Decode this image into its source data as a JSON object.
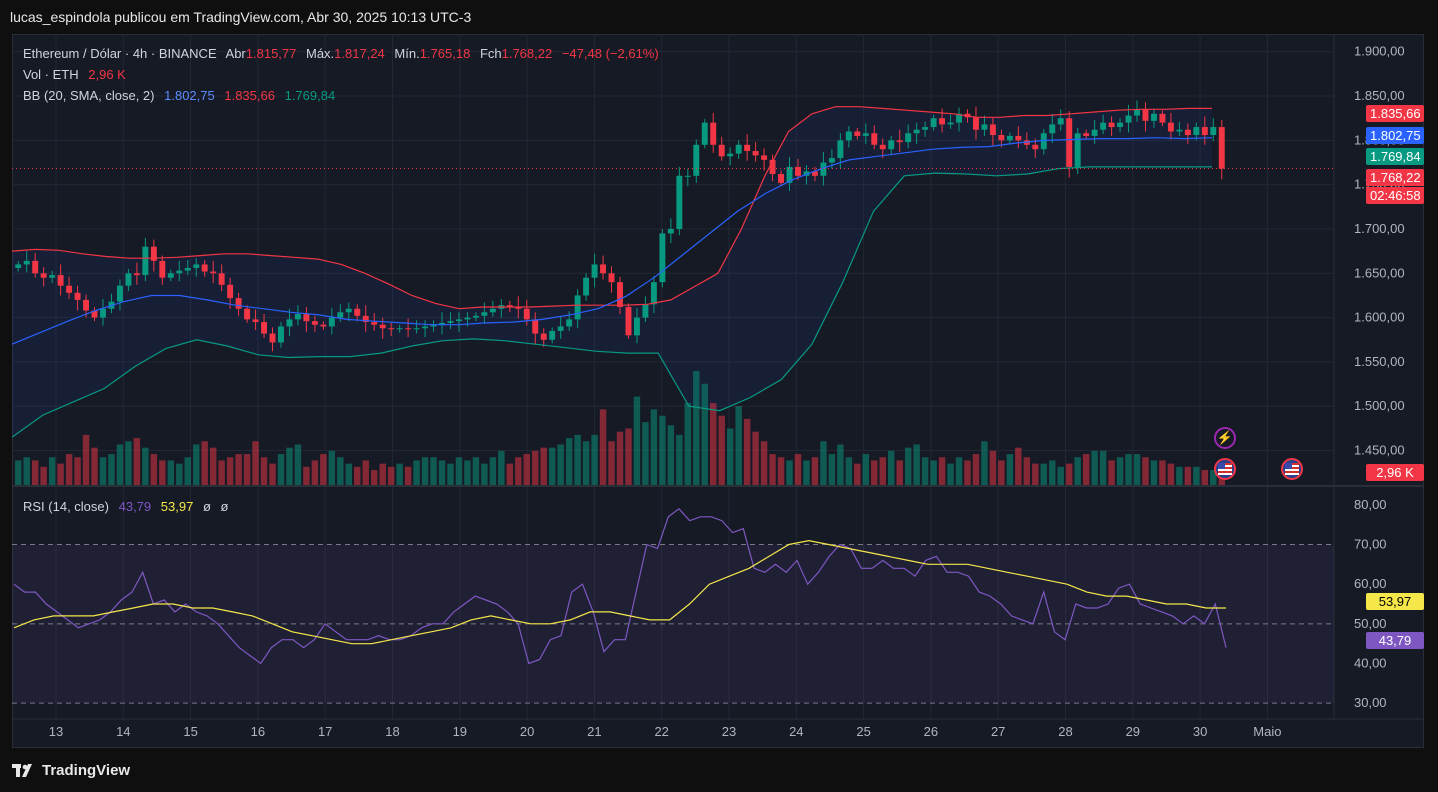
{
  "header": {
    "text": "lucas_espindola publicou em TradingView.com, Abr 30, 2025 10:13 UTC-3"
  },
  "legend": {
    "symbol": "Ethereum / Dólar · 4h · BINANCE",
    "open_label": "Abr",
    "open": "1.815,77",
    "high_label": "Máx.",
    "high": "1.817,24",
    "low_label": "Mín.",
    "low": "1.765,18",
    "close_label": "Fch",
    "close": "1.768,22",
    "change": "−47,48 (−2,61%)",
    "vol_label": "Vol · ETH",
    "vol": "2,96 K",
    "bb_label": "BB (20, SMA, close, 2)",
    "bb_basis": "1.802,75",
    "bb_upper": "1.835,66",
    "bb_lower": "1.769,84",
    "rsi_label": "RSI (14, close)",
    "rsi_value": "43,79",
    "rsi_ma": "53,97",
    "rsi_extra1": "ø",
    "rsi_extra2": "ø"
  },
  "price_tags": {
    "upper": "1.835,66",
    "basis": "1.802,75",
    "lower": "1.769,84",
    "last": "1.768,22",
    "countdown": "02:46:58",
    "volume": "2,96 K",
    "rsi_ma": "53,97",
    "rsi": "43,79"
  },
  "colors": {
    "up": "#089981",
    "down": "#f23645",
    "basis": "#2962ff",
    "rsi": "#7e57c2",
    "rsi_ma": "#f5e74a",
    "background": "#161a25"
  },
  "brand": "TradingView",
  "icons": [
    "lightning-icon",
    "us-flag-icon",
    "us-flag-icon"
  ],
  "chart_data": [
    {
      "type": "candlestick",
      "title": "Ethereum / Dólar · 4h · BINANCE",
      "interval": "4h",
      "x_labels": [
        "13",
        "14",
        "15",
        "16",
        "17",
        "18",
        "19",
        "20",
        "21",
        "22",
        "23",
        "24",
        "25",
        "26",
        "27",
        "28",
        "29",
        "30",
        "Maio"
      ],
      "y_ticks": [
        "1.900,00",
        "1.850,00",
        "1.800,00",
        "1.750,00",
        "1.700,00",
        "1.650,00",
        "1.600,00",
        "1.550,00",
        "1.500,00",
        "1.450,00"
      ],
      "ylim": [
        1410,
        1920
      ],
      "closes": [
        1660,
        1664,
        1650,
        1645,
        1648,
        1636,
        1628,
        1620,
        1608,
        1600,
        1610,
        1618,
        1636,
        1650,
        1648,
        1680,
        1664,
        1645,
        1650,
        1653,
        1656,
        1660,
        1652,
        1650,
        1637,
        1622,
        1610,
        1598,
        1595,
        1582,
        1572,
        1590,
        1598,
        1604,
        1596,
        1592,
        1590,
        1600,
        1606,
        1610,
        1602,
        1595,
        1592,
        1588,
        1587,
        1588,
        1587,
        1588,
        1590,
        1592,
        1594,
        1596,
        1598,
        1600,
        1602,
        1606,
        1610,
        1614,
        1612,
        1610,
        1598,
        1582,
        1575,
        1585,
        1590,
        1598,
        1625,
        1645,
        1660,
        1650,
        1640,
        1612,
        1580,
        1600,
        1615,
        1640,
        1695,
        1700,
        1760,
        1760,
        1795,
        1820,
        1795,
        1782,
        1785,
        1795,
        1788,
        1783,
        1778,
        1762,
        1752,
        1770,
        1760,
        1765,
        1760,
        1775,
        1780,
        1800,
        1810,
        1805,
        1808,
        1795,
        1790,
        1800,
        1798,
        1808,
        1812,
        1815,
        1825,
        1818,
        1820,
        1830,
        1826,
        1812,
        1818,
        1806,
        1800,
        1805,
        1800,
        1795,
        1790,
        1808,
        1818,
        1825,
        1770,
        1808,
        1805,
        1812,
        1820,
        1815,
        1820,
        1828,
        1835,
        1822,
        1830,
        1820,
        1810,
        1812,
        1806,
        1815,
        1806,
        1815,
        1768
      ],
      "bb_upper": [
        1675,
        1677,
        1676,
        1672,
        1669,
        1667,
        1667,
        1668,
        1670,
        1672,
        1672,
        1670,
        1668,
        1666,
        1660,
        1650,
        1638,
        1625,
        1616,
        1610,
        1612,
        1612,
        1612,
        1613,
        1614,
        1614,
        1614,
        1615,
        1620,
        1635,
        1650,
        1700,
        1760,
        1810,
        1830,
        1838,
        1838,
        1836,
        1834,
        1832,
        1830,
        1826,
        1826,
        1828,
        1828,
        1830,
        1832,
        1834,
        1835,
        1835,
        1836,
        1836
      ],
      "bb_basis": [
        1570,
        1583,
        1596,
        1608,
        1618,
        1625,
        1625,
        1620,
        1614,
        1610,
        1606,
        1603,
        1598,
        1596,
        1594,
        1592,
        1592,
        1594,
        1595,
        1598,
        1603,
        1610,
        1624,
        1645,
        1670,
        1695,
        1720,
        1740,
        1756,
        1768,
        1778,
        1782,
        1786,
        1790,
        1792,
        1793,
        1797,
        1800,
        1801,
        1802,
        1802,
        1803,
        1802,
        1803
      ],
      "bb_lower": [
        1465,
        1490,
        1505,
        1520,
        1545,
        1565,
        1575,
        1568,
        1558,
        1555,
        1556,
        1556,
        1560,
        1568,
        1574,
        1576,
        1574,
        1570,
        1566,
        1562,
        1560,
        1560,
        1500,
        1495,
        1510,
        1530,
        1570,
        1640,
        1720,
        1760,
        1763,
        1762,
        1760,
        1762,
        1768,
        1770,
        1770,
        1770,
        1770,
        1770
      ],
      "last": 1768.22
    },
    {
      "type": "bar",
      "title": "Vol · ETH",
      "last": "2,96 K",
      "values": [
        0.8,
        0.9,
        0.8,
        0.6,
        0.9,
        0.7,
        1.0,
        0.9,
        1.6,
        1.2,
        0.9,
        1.0,
        1.3,
        1.4,
        1.5,
        1.2,
        1.0,
        0.8,
        0.8,
        0.7,
        0.9,
        1.3,
        1.4,
        1.2,
        0.8,
        0.9,
        1.0,
        1.0,
        1.4,
        0.9,
        0.7,
        1.0,
        1.2,
        1.3,
        0.6,
        0.8,
        1.0,
        1.1,
        0.9,
        0.7,
        0.6,
        0.8,
        0.5,
        0.7,
        0.6,
        0.7,
        0.6,
        0.8,
        0.9,
        0.9,
        0.8,
        0.7,
        0.9,
        0.8,
        0.9,
        0.7,
        0.9,
        1.1,
        0.7,
        0.9,
        1.0,
        1.1,
        1.2,
        1.2,
        1.3,
        1.5,
        1.6,
        1.4,
        1.6,
        2.4,
        1.4,
        1.7,
        1.8,
        2.8,
        2.0,
        2.4,
        2.2,
        1.9,
        1.6,
        2.6,
        3.6,
        3.2,
        2.6,
        2.2,
        1.8,
        2.5,
        2.1,
        1.7,
        1.4,
        1.0,
        0.9,
        0.8,
        1.0,
        0.8,
        0.9,
        1.4,
        1.0,
        1.3,
        0.9,
        0.7,
        1.0,
        0.8,
        0.9,
        1.1,
        0.8,
        1.2,
        1.3,
        0.9,
        0.8,
        0.9,
        0.7,
        0.9,
        0.8,
        1.0,
        1.4,
        1.1,
        0.8,
        1.0,
        1.2,
        0.9,
        0.7,
        0.7,
        0.8,
        0.6,
        0.7,
        0.9,
        1.0,
        1.1,
        1.1,
        0.8,
        0.9,
        1.0,
        1.0,
        0.9,
        0.8,
        0.8,
        0.7,
        0.6,
        0.6,
        0.6,
        0.5,
        0.5,
        0.4
      ]
    },
    {
      "type": "line",
      "title": "RSI (14, close)",
      "y_ticks": [
        "80,00",
        "70,00",
        "60,00",
        "50,00",
        "40,00",
        "30,00"
      ],
      "ylim": [
        26,
        84
      ],
      "bands": [
        70,
        50,
        30
      ],
      "series": [
        {
          "name": "RSI",
          "values": [
            60,
            58,
            58,
            55,
            53,
            51,
            49,
            50,
            51,
            53,
            56,
            58,
            63,
            55,
            56,
            53,
            55,
            53,
            52,
            50,
            47,
            44,
            42,
            40,
            44,
            46,
            46,
            44,
            46,
            50,
            48,
            46,
            46,
            46,
            47,
            46,
            46,
            47,
            49,
            50,
            50,
            53,
            55,
            57,
            56,
            55,
            53,
            50,
            40,
            41,
            46,
            47,
            58,
            60,
            53,
            43,
            46,
            46,
            58,
            70,
            69,
            77,
            79,
            76,
            77,
            77,
            76,
            73,
            74,
            64,
            63,
            65,
            63,
            66,
            60,
            63,
            67,
            70,
            69,
            64,
            64,
            66,
            64,
            64,
            62,
            66,
            67,
            63,
            63,
            62,
            58,
            57,
            55,
            52,
            51,
            50,
            58,
            48,
            46,
            55,
            54,
            54,
            55,
            59,
            60,
            55,
            54,
            53,
            52,
            50,
            52,
            50,
            55,
            44
          ]
        },
        {
          "name": "MA",
          "values": [
            49,
            51,
            52,
            52,
            52,
            53,
            54,
            55,
            55,
            54,
            54,
            53,
            52,
            50,
            48,
            47,
            46,
            45,
            45,
            46,
            47,
            48,
            49,
            51,
            52,
            51,
            50,
            50,
            51,
            53,
            53,
            52,
            51,
            51,
            55,
            60,
            62,
            64,
            67,
            70,
            71,
            70,
            69,
            68,
            67,
            66,
            65,
            65,
            65,
            64,
            63,
            62,
            61,
            60,
            58,
            57,
            57,
            56,
            55,
            55,
            54,
            54
          ]
        }
      ],
      "last_rsi": 43.79,
      "last_ma": 53.97
    }
  ]
}
